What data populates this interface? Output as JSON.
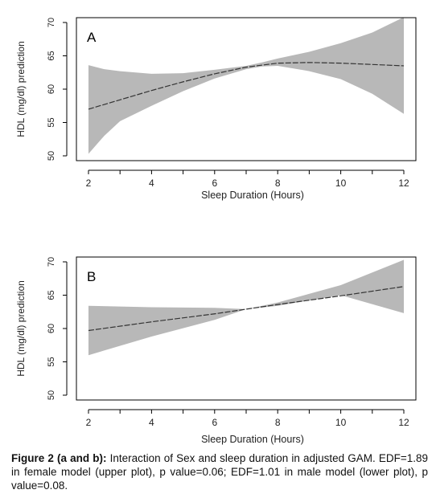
{
  "chart_data": [
    {
      "type": "line",
      "panel_label": "A",
      "xlabel": "Sleep Duration (Hours)",
      "ylabel": "HDL (mg/dl) prediction",
      "xlim": [
        2,
        12
      ],
      "ylim": [
        50,
        70
      ],
      "xticks": [
        2,
        4,
        6,
        8,
        10,
        12
      ],
      "yticks": [
        50,
        55,
        60,
        65,
        70
      ],
      "grid": false,
      "series": [
        {
          "role": "fit",
          "x": [
            2,
            3,
            4,
            5,
            6,
            7,
            8,
            9,
            10,
            11,
            12
          ],
          "y": [
            57.0,
            58.4,
            59.8,
            61.1,
            62.3,
            63.3,
            63.9,
            64.0,
            63.9,
            63.7,
            63.5
          ]
        },
        {
          "role": "confidence-band",
          "x": [
            2,
            2.5,
            3,
            4,
            5,
            6,
            7,
            7.5,
            8,
            9,
            10,
            11,
            12
          ],
          "lower": [
            50.3,
            53.0,
            55.2,
            57.5,
            59.7,
            61.6,
            63.0,
            63.4,
            63.5,
            62.7,
            61.5,
            59.3,
            56.3
          ],
          "upper": [
            63.6,
            63.0,
            62.7,
            62.3,
            62.4,
            62.9,
            63.5,
            64.0,
            64.6,
            65.6,
            66.9,
            68.5,
            70.8
          ]
        }
      ],
      "colors": {
        "band": "#b8b8b8",
        "line": "#333333"
      }
    },
    {
      "type": "line",
      "panel_label": "B",
      "xlabel": "Sleep Duration (Hours)",
      "ylabel": "HDL (mg/dl) prediction",
      "xlim": [
        2,
        12
      ],
      "ylim": [
        50,
        70
      ],
      "xticks": [
        2,
        4,
        6,
        8,
        10,
        12
      ],
      "yticks": [
        50,
        55,
        60,
        65,
        70
      ],
      "grid": false,
      "series": [
        {
          "role": "fit",
          "x": [
            2,
            4,
            6,
            7,
            8,
            10,
            12
          ],
          "y": [
            59.7,
            61.0,
            62.2,
            62.9,
            63.6,
            64.9,
            66.3
          ]
        },
        {
          "role": "confidence-band",
          "x": [
            2,
            4,
            6,
            7,
            8,
            10,
            12
          ],
          "lower": [
            56.0,
            58.8,
            61.3,
            62.9,
            63.4,
            65.0,
            62.3
          ],
          "upper": [
            63.4,
            63.2,
            63.1,
            62.9,
            63.9,
            66.5,
            70.3
          ]
        }
      ],
      "colors": {
        "band": "#b8b8b8",
        "line": "#333333"
      }
    }
  ],
  "caption": {
    "lead": "Figure 2 (a and b):",
    "text": " Interaction of Sex and sleep duration in adjusted GAM. EDF=1.89 in female model (upper plot), p value=0.06; EDF=1.01 in male model (lower plot), p value=0.08."
  }
}
